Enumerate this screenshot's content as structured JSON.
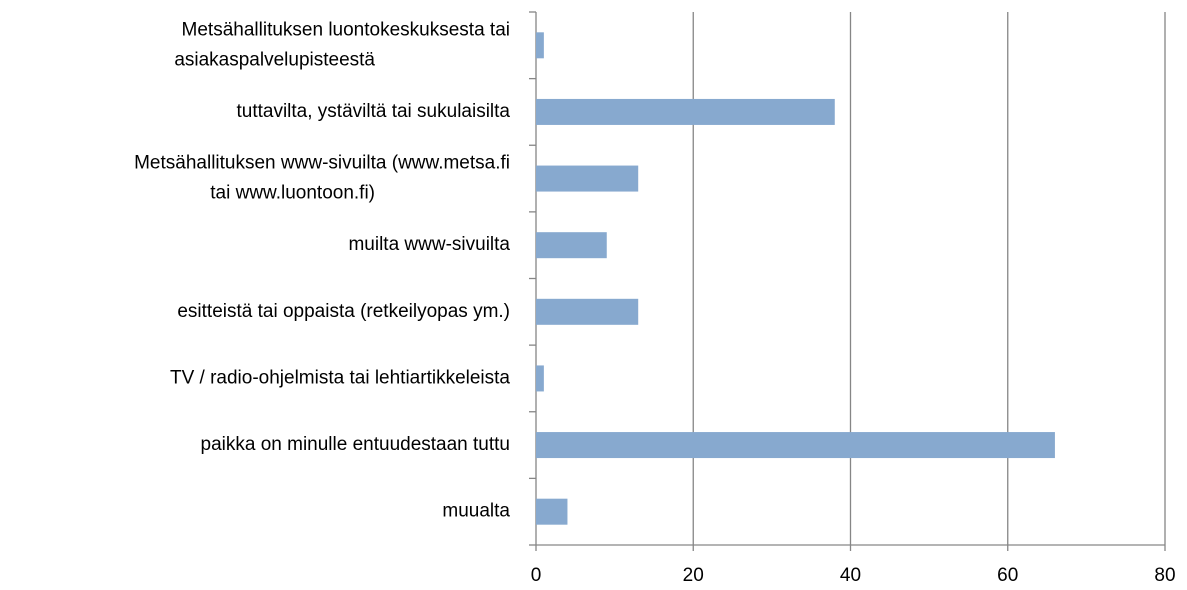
{
  "chart_data": {
    "type": "barh",
    "categories": [
      "Metsähallituksen luontokeskuksesta tai\nasiakaspalvelupisteestä",
      "tuttavilta, ystäviltä tai sukulaisilta",
      "Metsähallituksen www-sivuilta (www.metsa.fi\ntai www.luontoon.fi)",
      "muilta www-sivuilta",
      "esitteistä tai oppaista (retkeilyopas ym.)",
      "TV / radio-ohjelmista tai lehtiartikkeleista",
      "paikka on minulle entuudestaan tuttu",
      "muualta"
    ],
    "values": [
      1,
      38,
      13,
      9,
      13,
      1,
      66,
      4
    ],
    "color": "#87a9cf",
    "xlim": [
      0,
      80
    ],
    "xticks": [
      0,
      20,
      40,
      60,
      80
    ],
    "grid": true
  }
}
